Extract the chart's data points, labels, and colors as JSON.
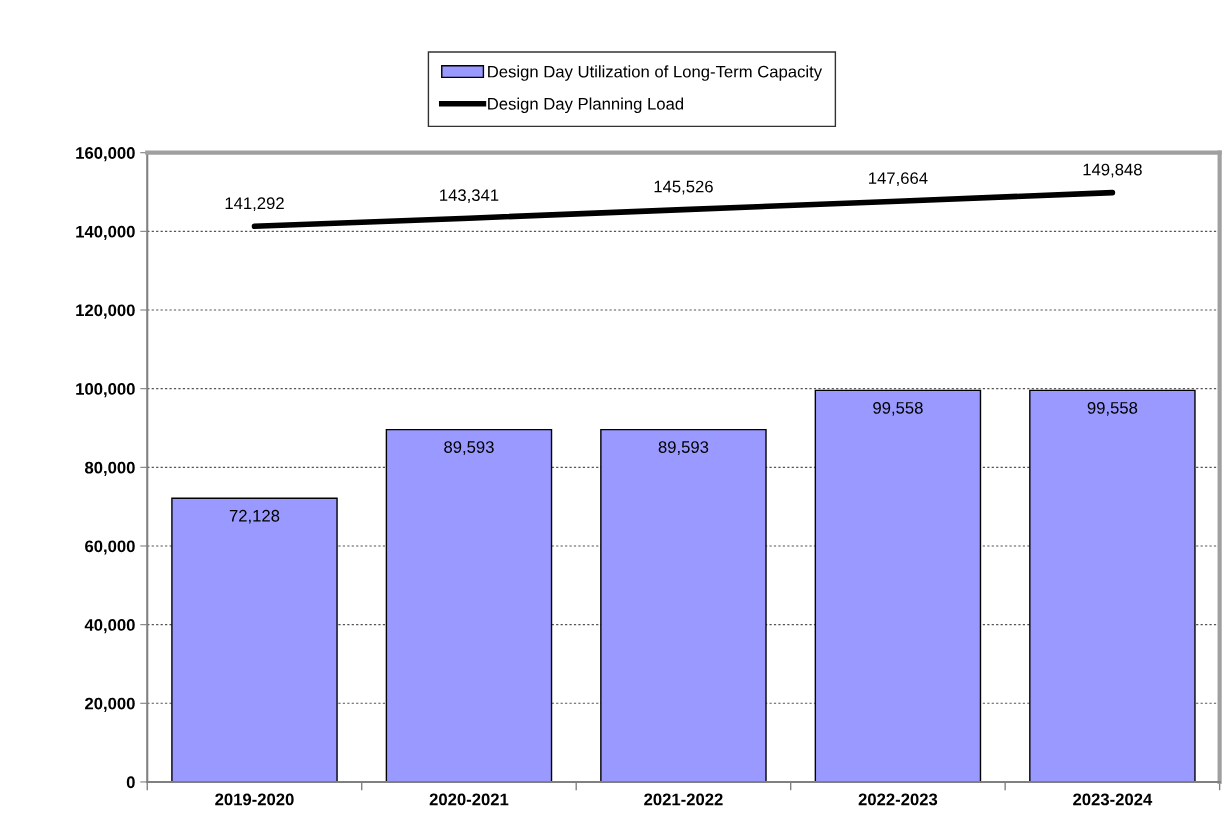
{
  "chart_data": {
    "type": "bar",
    "categories": [
      "2019-2020",
      "2020-2021",
      "2021-2022",
      "2022-2023",
      "2023-2024"
    ],
    "series": [
      {
        "name": "Design Day Utilization of Long-Term Capacity",
        "color": "#9999ff",
        "values": [
          72128,
          89593,
          89593,
          99558,
          99558
        ],
        "value_labels": [
          "72,128",
          "89,593",
          "89,593",
          "99,558",
          "99,558"
        ]
      },
      {
        "name": "Design Day Planning Load",
        "type": "line",
        "color": "#000000",
        "values": [
          141292,
          143341,
          145526,
          147664,
          149848
        ],
        "value_labels": [
          "141,292",
          "143,341",
          "145,526",
          "147,664",
          "149,848"
        ]
      }
    ],
    "ylim": [
      0,
      160000
    ],
    "yticks": [
      {
        "value": 0,
        "label": "0"
      },
      {
        "value": 20000,
        "label": "20,000"
      },
      {
        "value": 40000,
        "label": "40,000"
      },
      {
        "value": 60000,
        "label": "60,000"
      },
      {
        "value": 80000,
        "label": "80,000"
      },
      {
        "value": 100000,
        "label": "100,000"
      },
      {
        "value": 120000,
        "label": "120,000"
      },
      {
        "value": 140000,
        "label": "140,000"
      },
      {
        "value": 160000,
        "label": "160,000"
      }
    ],
    "grid": "y",
    "legend": "top",
    "marker": "none",
    "line_style": "solid"
  }
}
